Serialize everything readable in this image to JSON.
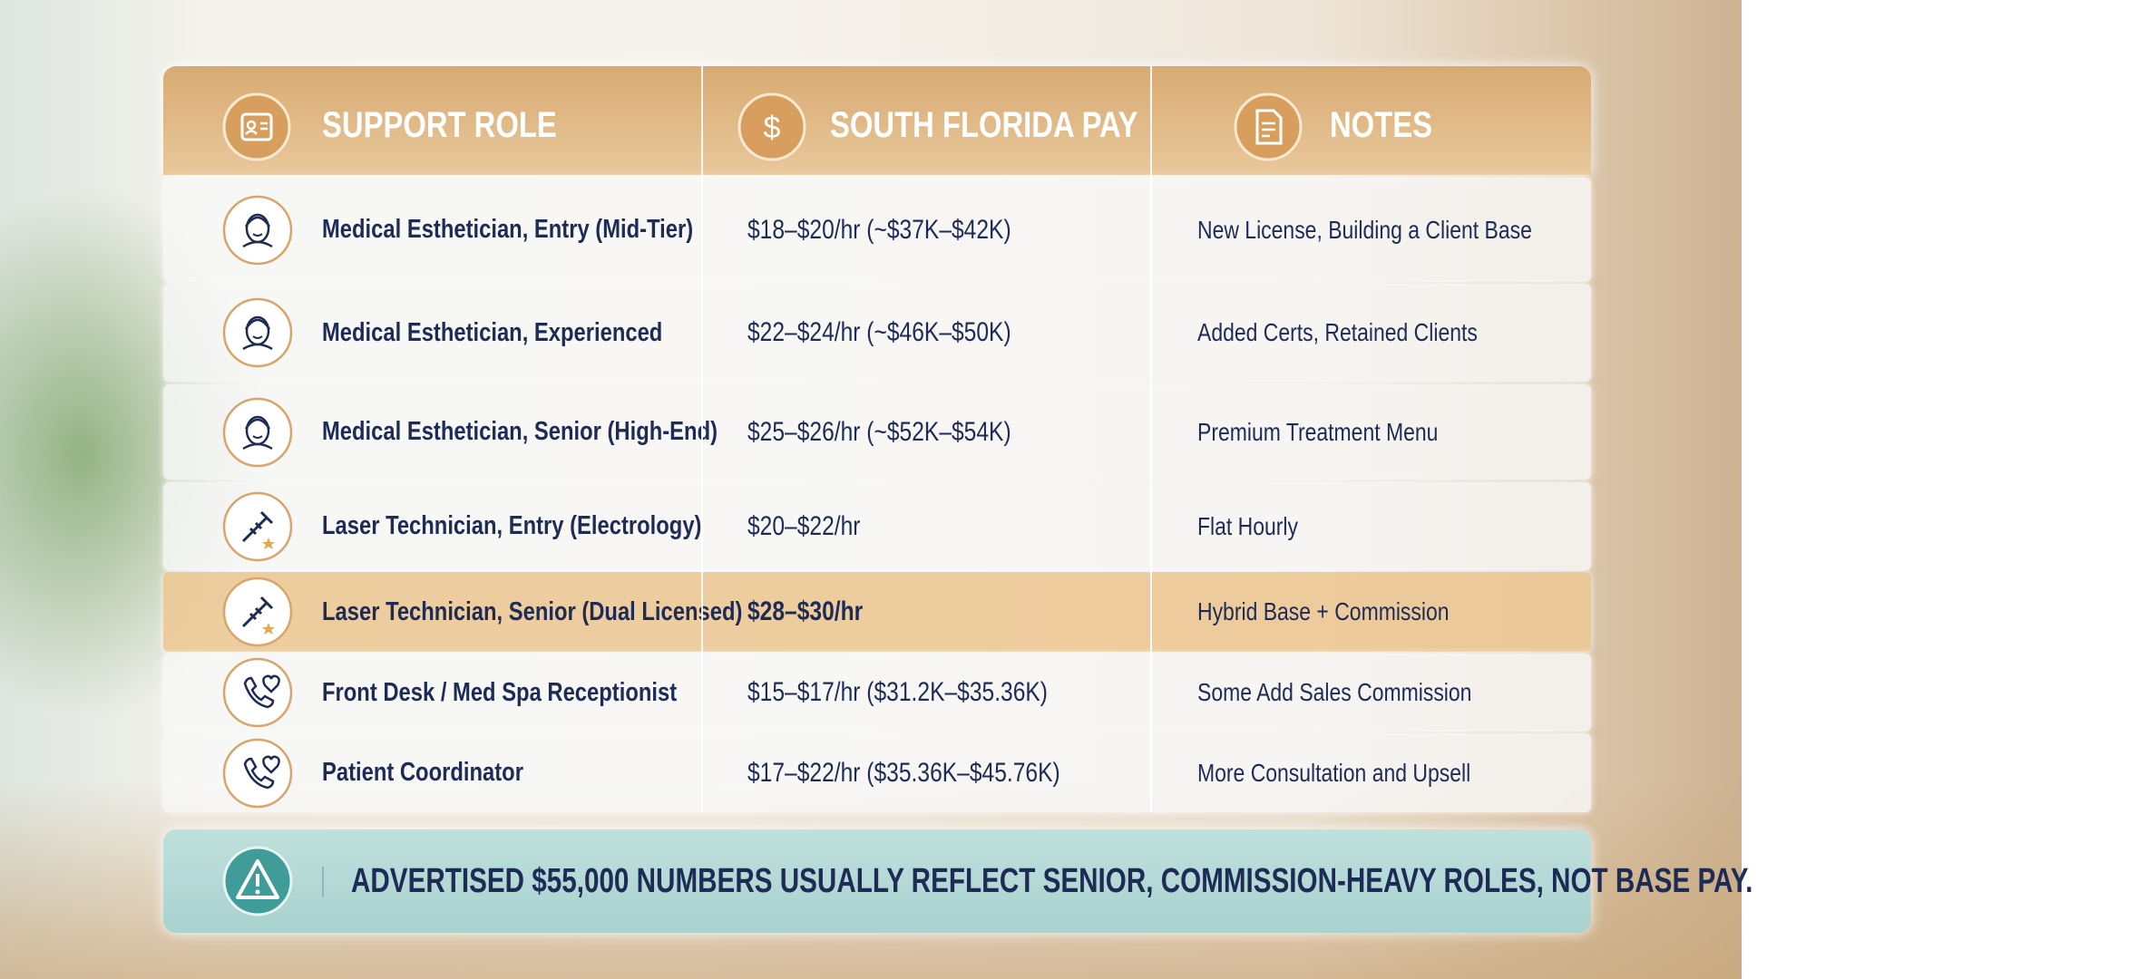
{
  "header": {
    "columns": [
      "SUPPORT ROLE",
      "SOUTH FLORIDA PAY",
      "NOTES"
    ]
  },
  "rows": [
    {
      "role": "Medical Esthetician, Entry (Mid-Tier)",
      "pay": "$18–$20/hr (~$37K–$42K)",
      "notes": "New License, Building a Client Base"
    },
    {
      "role": "Medical Esthetician, Experienced",
      "pay": "$22–$24/hr (~$46K–$50K)",
      "notes": "Added Certs, Retained Clients"
    },
    {
      "role": "Medical Esthetician, Senior (High-End)",
      "pay": "$25–$26/hr (~$52K–$54K)",
      "notes": "Premium Treatment Menu"
    },
    {
      "role": "Laser Technician, Entry (Electrology)",
      "pay": "$20–$22/hr",
      "notes": "Flat Hourly"
    },
    {
      "role": "Laser Technician, Senior (Dual Licensed)",
      "pay": "$28–$30/hr",
      "notes": "Hybrid Base + Commission"
    },
    {
      "role": "Front Desk / Med Spa Receptionist",
      "pay": "$15–$17/hr ($31.2K–$35.36K)",
      "notes": "Some Add Sales Commission"
    },
    {
      "role": "Patient Coordinator",
      "pay": "$17–$22/hr ($35.36K–$45.76K)",
      "notes": "More Consultation and Upsell"
    }
  ],
  "footer": {
    "note": "ADVERTISED $55,000 NUMBERS USUALLY REFLECT SENIOR, COMMISSION-HEAVY ROLES, NOT BASE PAY."
  }
}
